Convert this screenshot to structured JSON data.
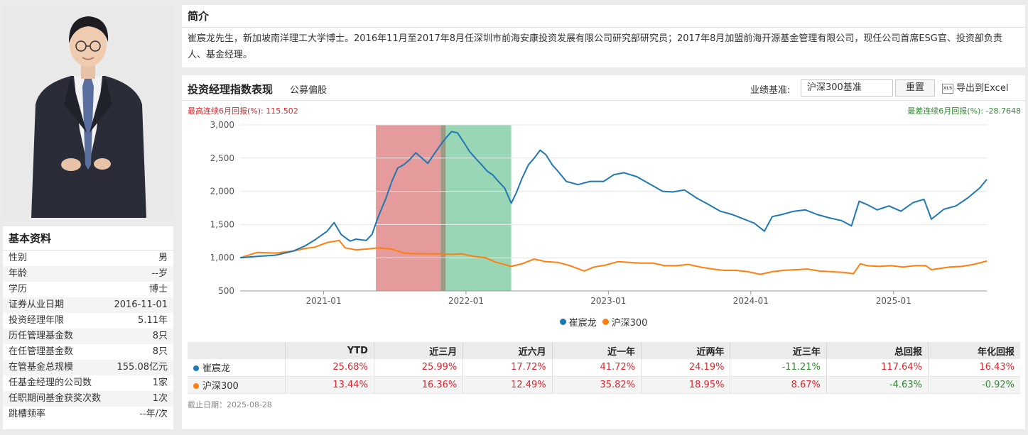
{
  "colors": {
    "manager": "#1f77b4",
    "benchmark": "#ff7f0e",
    "up": "#d9262c",
    "down": "#2f8a2f"
  },
  "profile": {
    "photo_alt": "manager-photo",
    "section_title": "基本资料",
    "fields": [
      {
        "label": "性别",
        "value": "男"
      },
      {
        "label": "年龄",
        "value": "--岁"
      },
      {
        "label": "学历",
        "value": "博士"
      },
      {
        "label": "证券从业日期",
        "value": "2016-11-01"
      },
      {
        "label": "投资经理年限",
        "value": "5.11年"
      },
      {
        "label": "历任管理基金数",
        "value": "8只"
      },
      {
        "label": "在任管理基金数",
        "value": "8只"
      },
      {
        "label": "在管基金总规模",
        "value": "155.08亿元"
      },
      {
        "label": "任基金经理的公司数",
        "value": "1家"
      },
      {
        "label": "任职期间基金获奖次数",
        "value": "1次"
      },
      {
        "label": "跳槽频率",
        "value": "--年/次"
      }
    ]
  },
  "intro": {
    "title": "简介",
    "text": "崔宸龙先生，新加坡南洋理工大学博士。2016年11月至2017年8月任深圳市前海安康投资发展有限公司研究部研究员；2017年8月加盟前海开源基金管理有限公司，现任公司首席ESG官、投资部负责人、基金经理。"
  },
  "chart_panel": {
    "title": "投资经理指数表现",
    "subtitle": "公募偏股",
    "bench_label": "业绩基准:",
    "bench_value": "沪深300基准",
    "reset_label": "重置",
    "export_label": "导出到Excel",
    "xls_icon_text": "XLS",
    "max_return_label": "最高连续6月回报(%): 115.502",
    "min_return_label": "最差连续6月回报(%): -28.7648",
    "cutoff": "截止日期：2025-08-28"
  },
  "chart_data": {
    "type": "line",
    "x_start": "2020-06-01",
    "x_end": "2025-08-28",
    "ylim": [
      500,
      3000
    ],
    "yticks": [
      500,
      1000,
      1500,
      2000,
      2500,
      3000
    ],
    "ytick_labels": [
      "500",
      "1,000",
      "1,500",
      "2,000",
      "2,500",
      "3,000"
    ],
    "xticks": [
      "2021-01-01",
      "2022-01-01",
      "2023-01-01",
      "2024-01-01",
      "2025-01-01"
    ],
    "xtick_labels": [
      "2021-01",
      "2022-01",
      "2023-01",
      "2024-01",
      "2025-01"
    ],
    "highlight_bands": [
      {
        "from": "2021-05-15",
        "to": "2021-10-28",
        "color": "#e08a8a"
      },
      {
        "from": "2021-10-28",
        "to": "2021-11-10",
        "color": "#8a8a70"
      },
      {
        "from": "2021-11-10",
        "to": "2022-04-27",
        "color": "#86cfa8"
      }
    ],
    "series": [
      {
        "name": "崔宸龙",
        "color": "#1f77b4",
        "points": [
          [
            "2020-06-01",
            1000
          ],
          [
            "2020-07-15",
            1020
          ],
          [
            "2020-09-01",
            1040
          ],
          [
            "2020-10-15",
            1100
          ],
          [
            "2020-11-15",
            1180
          ],
          [
            "2020-12-10",
            1270
          ],
          [
            "2021-01-10",
            1400
          ],
          [
            "2021-01-28",
            1530
          ],
          [
            "2021-02-15",
            1350
          ],
          [
            "2021-03-10",
            1250
          ],
          [
            "2021-03-25",
            1280
          ],
          [
            "2021-04-20",
            1260
          ],
          [
            "2021-05-05",
            1350
          ],
          [
            "2021-05-20",
            1600
          ],
          [
            "2021-06-10",
            1900
          ],
          [
            "2021-06-25",
            2150
          ],
          [
            "2021-07-10",
            2350
          ],
          [
            "2021-07-25",
            2400
          ],
          [
            "2021-08-10",
            2480
          ],
          [
            "2021-08-25",
            2580
          ],
          [
            "2021-09-10",
            2500
          ],
          [
            "2021-09-25",
            2420
          ],
          [
            "2021-10-10",
            2550
          ],
          [
            "2021-10-28",
            2700
          ],
          [
            "2021-11-10",
            2800
          ],
          [
            "2021-11-25",
            2900
          ],
          [
            "2021-12-10",
            2880
          ],
          [
            "2021-12-25",
            2750
          ],
          [
            "2022-01-10",
            2600
          ],
          [
            "2022-01-25",
            2500
          ],
          [
            "2022-02-10",
            2400
          ],
          [
            "2022-02-25",
            2300
          ],
          [
            "2022-03-10",
            2250
          ],
          [
            "2022-03-25",
            2150
          ],
          [
            "2022-04-10",
            2050
          ],
          [
            "2022-04-27",
            1820
          ],
          [
            "2022-05-10",
            1980
          ],
          [
            "2022-05-25",
            2200
          ],
          [
            "2022-06-10",
            2400
          ],
          [
            "2022-06-25",
            2500
          ],
          [
            "2022-07-10",
            2620
          ],
          [
            "2022-07-25",
            2550
          ],
          [
            "2022-08-10",
            2400
          ],
          [
            "2022-08-25",
            2300
          ],
          [
            "2022-09-15",
            2150
          ],
          [
            "2022-10-15",
            2100
          ],
          [
            "2022-11-15",
            2150
          ],
          [
            "2022-12-20",
            2150
          ],
          [
            "2023-01-15",
            2250
          ],
          [
            "2023-02-10",
            2280
          ],
          [
            "2023-03-15",
            2220
          ],
          [
            "2023-04-20",
            2100
          ],
          [
            "2023-05-20",
            2000
          ],
          [
            "2023-06-15",
            1990
          ],
          [
            "2023-07-15",
            2020
          ],
          [
            "2023-08-15",
            1900
          ],
          [
            "2023-09-15",
            1800
          ],
          [
            "2023-10-15",
            1700
          ],
          [
            "2023-11-15",
            1650
          ],
          [
            "2023-12-15",
            1580
          ],
          [
            "2024-01-10",
            1520
          ],
          [
            "2024-02-05",
            1400
          ],
          [
            "2024-02-25",
            1620
          ],
          [
            "2024-03-20",
            1650
          ],
          [
            "2024-04-20",
            1700
          ],
          [
            "2024-05-20",
            1720
          ],
          [
            "2024-06-20",
            1650
          ],
          [
            "2024-07-20",
            1600
          ],
          [
            "2024-08-20",
            1560
          ],
          [
            "2024-09-15",
            1480
          ],
          [
            "2024-10-05",
            1850
          ],
          [
            "2024-10-25",
            1800
          ],
          [
            "2024-11-20",
            1720
          ],
          [
            "2024-12-20",
            1780
          ],
          [
            "2025-01-20",
            1700
          ],
          [
            "2025-02-20",
            1830
          ],
          [
            "2025-03-20",
            1880
          ],
          [
            "2025-04-08",
            1580
          ],
          [
            "2025-05-10",
            1730
          ],
          [
            "2025-06-10",
            1780
          ],
          [
            "2025-07-10",
            1900
          ],
          [
            "2025-08-10",
            2050
          ],
          [
            "2025-08-28",
            2180
          ]
        ]
      },
      {
        "name": "沪深300",
        "color": "#ff7f0e",
        "points": [
          [
            "2020-06-01",
            1000
          ],
          [
            "2020-07-15",
            1080
          ],
          [
            "2020-09-01",
            1070
          ],
          [
            "2020-10-15",
            1100
          ],
          [
            "2020-11-15",
            1140
          ],
          [
            "2020-12-10",
            1160
          ],
          [
            "2021-01-10",
            1230
          ],
          [
            "2021-02-10",
            1260
          ],
          [
            "2021-02-25",
            1150
          ],
          [
            "2021-03-25",
            1120
          ],
          [
            "2021-04-20",
            1130
          ],
          [
            "2021-05-20",
            1150
          ],
          [
            "2021-06-25",
            1130
          ],
          [
            "2021-07-25",
            1070
          ],
          [
            "2021-08-25",
            1060
          ],
          [
            "2021-09-25",
            1060
          ],
          [
            "2021-10-28",
            1060
          ],
          [
            "2021-11-25",
            1050
          ],
          [
            "2021-12-20",
            1060
          ],
          [
            "2022-01-20",
            1020
          ],
          [
            "2022-02-20",
            1000
          ],
          [
            "2022-03-15",
            940
          ],
          [
            "2022-04-27",
            870
          ],
          [
            "2022-05-25",
            910
          ],
          [
            "2022-06-25",
            980
          ],
          [
            "2022-07-25",
            940
          ],
          [
            "2022-08-25",
            930
          ],
          [
            "2022-09-25",
            880
          ],
          [
            "2022-10-31",
            800
          ],
          [
            "2022-11-25",
            860
          ],
          [
            "2022-12-25",
            890
          ],
          [
            "2023-01-25",
            940
          ],
          [
            "2023-02-25",
            930
          ],
          [
            "2023-03-25",
            920
          ],
          [
            "2023-04-25",
            920
          ],
          [
            "2023-05-25",
            880
          ],
          [
            "2023-06-25",
            880
          ],
          [
            "2023-07-25",
            900
          ],
          [
            "2023-08-25",
            860
          ],
          [
            "2023-09-25",
            830
          ],
          [
            "2023-10-25",
            810
          ],
          [
            "2023-11-25",
            810
          ],
          [
            "2023-12-25",
            790
          ],
          [
            "2024-01-25",
            750
          ],
          [
            "2024-02-25",
            790
          ],
          [
            "2024-03-25",
            810
          ],
          [
            "2024-04-25",
            820
          ],
          [
            "2024-05-25",
            830
          ],
          [
            "2024-06-25",
            800
          ],
          [
            "2024-07-25",
            790
          ],
          [
            "2024-08-25",
            780
          ],
          [
            "2024-09-20",
            760
          ],
          [
            "2024-10-08",
            910
          ],
          [
            "2024-10-25",
            880
          ],
          [
            "2024-11-25",
            870
          ],
          [
            "2024-12-25",
            880
          ],
          [
            "2025-01-25",
            860
          ],
          [
            "2025-02-25",
            880
          ],
          [
            "2025-03-25",
            880
          ],
          [
            "2025-04-08",
            820
          ],
          [
            "2025-05-25",
            860
          ],
          [
            "2025-06-25",
            870
          ],
          [
            "2025-07-25",
            900
          ],
          [
            "2025-08-28",
            950
          ]
        ]
      }
    ]
  },
  "table": {
    "headers": [
      "",
      "YTD",
      "近三月",
      "近六月",
      "近一年",
      "近两年",
      "近三年",
      "总回报",
      "年化回报"
    ],
    "rows": [
      {
        "name": "崔宸龙",
        "color": "#1f77b4",
        "values": [
          "25.68%",
          "25.99%",
          "17.72%",
          "41.72%",
          "24.19%",
          "-11.21%",
          "117.64%",
          "16.43%"
        ]
      },
      {
        "name": "沪深300",
        "color": "#ff7f0e",
        "values": [
          "13.44%",
          "16.36%",
          "12.49%",
          "35.82%",
          "18.95%",
          "8.67%",
          "-4.63%",
          "-0.92%"
        ]
      }
    ]
  }
}
